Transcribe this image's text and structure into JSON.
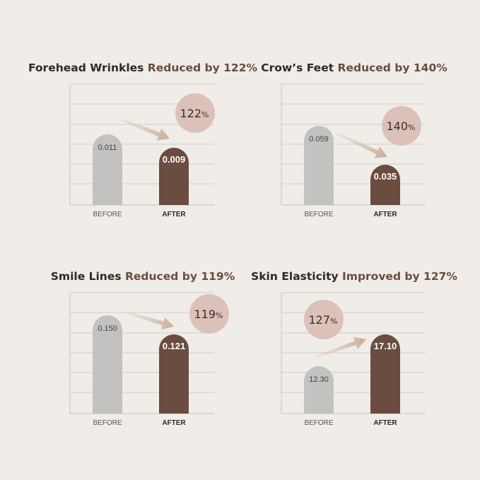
{
  "colors": {
    "before_bar": "#c4c2c0",
    "after_bar": "#6b4c40",
    "badge": "#dcc1bb",
    "arrow": "#d2bcaa",
    "grid": "#cfccc6",
    "accent_text": "#6b4c40"
  },
  "chart_data": [
    {
      "type": "bar",
      "title_main": "Forehead Wrinkles",
      "title_accent": "Reduced by 122%",
      "categories": [
        "BEFORE",
        "AFTER"
      ],
      "values": [
        0.011,
        0.009
      ],
      "value_labels": [
        "0.011",
        "0.009"
      ],
      "badge_number": "122",
      "badge_unit": "%",
      "direction": "down"
    },
    {
      "type": "bar",
      "title_main": "Crow’s Feet",
      "title_accent": "Reduced by 140%",
      "categories": [
        "BEFORE",
        "AFTER"
      ],
      "values": [
        0.059,
        0.035
      ],
      "value_labels": [
        "0.059",
        "0.035"
      ],
      "badge_number": "140",
      "badge_unit": "%",
      "direction": "down"
    },
    {
      "type": "bar",
      "title_main": "Smile Lines",
      "title_accent": "Reduced by 119%",
      "categories": [
        "BEFORE",
        "AFTER"
      ],
      "values": [
        0.15,
        0.121
      ],
      "value_labels": [
        "0.150",
        "0.121"
      ],
      "badge_number": "119",
      "badge_unit": "%",
      "direction": "down"
    },
    {
      "type": "bar",
      "title_main": "Skin Elasticity",
      "title_accent": "Improved by 127%",
      "categories": [
        "BEFORE",
        "AFTER"
      ],
      "values": [
        12.3,
        17.1
      ],
      "value_labels": [
        "12.30",
        "17.10"
      ],
      "badge_number": "127",
      "badge_unit": "%",
      "direction": "up"
    }
  ]
}
